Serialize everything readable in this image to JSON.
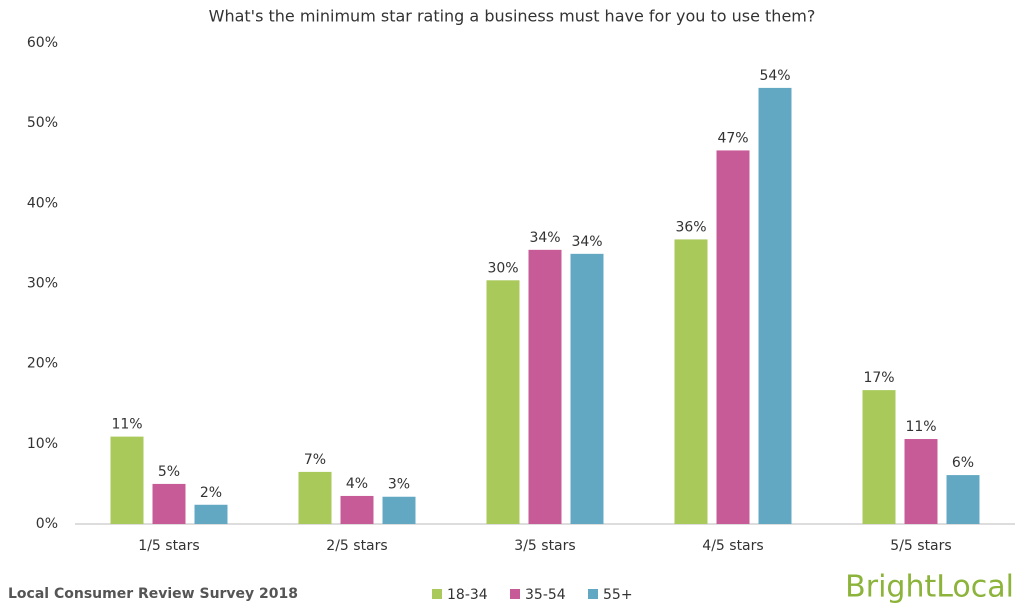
{
  "chart_data": {
    "type": "bar",
    "title": "What's the minimum star rating a business must have for you to use them?",
    "categories": [
      "1/5 stars",
      "2/5 stars",
      "3/5 stars",
      "4/5 stars",
      "5/5 stars"
    ],
    "series": [
      {
        "name": "18-34",
        "color": "#a9c95b",
        "values": [
          10.9,
          6.5,
          30.4,
          35.5,
          16.7
        ],
        "value_labels": [
          "11%",
          "7%",
          "30%",
          "36%",
          "17%"
        ]
      },
      {
        "name": "35-54",
        "color": "#c75b98",
        "values": [
          5.0,
          3.5,
          34.2,
          46.6,
          10.6
        ],
        "value_labels": [
          "5%",
          "4%",
          "34%",
          "47%",
          "11%"
        ]
      },
      {
        "name": "55+",
        "color": "#62a8c3",
        "values": [
          2.4,
          3.4,
          33.7,
          54.4,
          6.1
        ],
        "value_labels": [
          "2%",
          "3%",
          "34%",
          "54%",
          "6%"
        ]
      }
    ],
    "ylim": [
      0,
      60
    ],
    "yticks": [
      {
        "value": 0,
        "label": "0%"
      },
      {
        "value": 10,
        "label": "10%"
      },
      {
        "value": 20,
        "label": "20%"
      },
      {
        "value": 30,
        "label": "30%"
      },
      {
        "value": 40,
        "label": "40%"
      },
      {
        "value": 50,
        "label": "50%"
      },
      {
        "value": 60,
        "label": "60%"
      }
    ],
    "grid": false,
    "legend": "bottom",
    "source": "Local Consumer Review Survey 2018",
    "brand": "BrightLocal"
  }
}
